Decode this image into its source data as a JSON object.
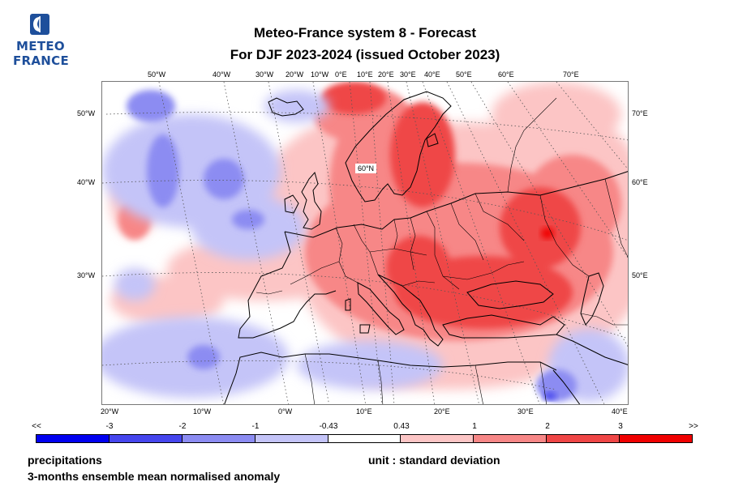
{
  "logo": {
    "line1": "METEO",
    "line2": "FRANCE",
    "brand_color": "#1e4f9b",
    "icon": "meteo-france-logo-icon"
  },
  "title": {
    "line1": "Meteo-France system 8  -  Forecast",
    "line2": "For DJF 2023-2024      (issued October 2023)"
  },
  "map": {
    "top_lon_labels": [
      "50°W",
      "40°W",
      "30°W",
      "20°W",
      "10°W",
      "0°E",
      "10°E",
      "20°E",
      "30°E",
      "40°E",
      "50°E",
      "60°E",
      "70°E"
    ],
    "bottom_lon_labels": [
      "20°W",
      "10°W",
      "0°W",
      "10°E",
      "20°E",
      "30°E",
      "40°E"
    ],
    "left_lat_labels": [
      "50°W",
      "40°W",
      "30°W"
    ],
    "right_lat_labels": [
      "70°E",
      "60°E",
      "50°E"
    ],
    "inner_label": "60°N"
  },
  "colorbar": {
    "labels": [
      "<<",
      "-3",
      "-2",
      "-1",
      "-0.43",
      "0.43",
      "1",
      "2",
      "3",
      ">>"
    ],
    "colors": [
      "#0000f0",
      "#4646ee",
      "#8c8cf2",
      "#c4c4f8",
      "#ffffff",
      "#fcc5c5",
      "#f78787",
      "#ef4646",
      "#f00000"
    ]
  },
  "footer": {
    "variable": "precipitations",
    "description": "3-months ensemble mean normalised anomaly",
    "unit": "unit : standard deviation"
  }
}
